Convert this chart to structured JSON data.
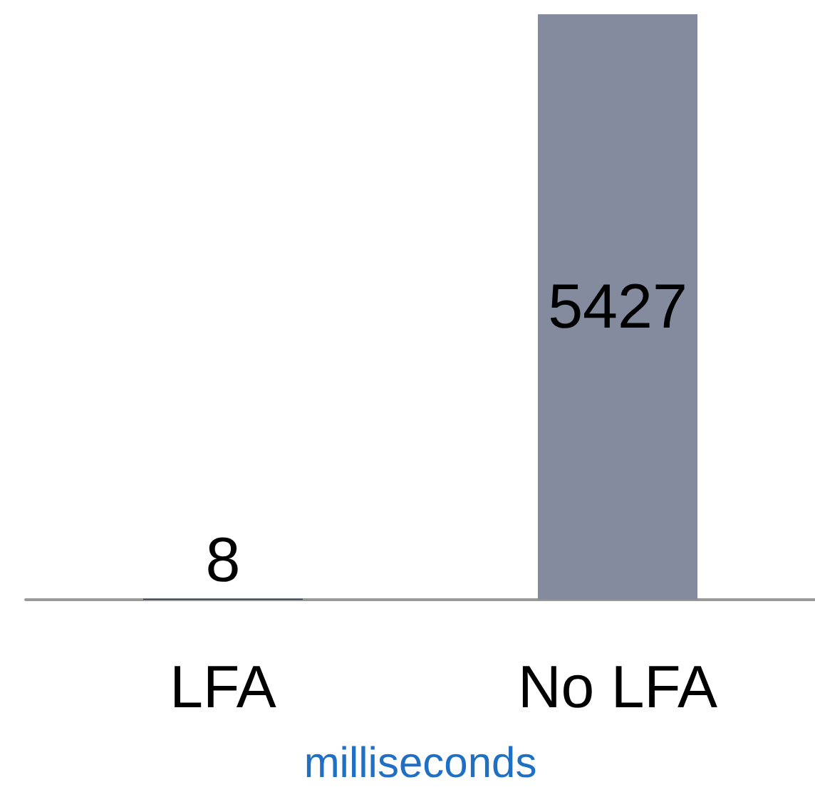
{
  "chart_data": {
    "type": "bar",
    "categories": [
      "LFA",
      "No LFA"
    ],
    "values": [
      8,
      5427
    ],
    "colors": [
      "#0d3366",
      "#858b9e"
    ],
    "data_labels": true,
    "xlabel": "milliseconds"
  }
}
